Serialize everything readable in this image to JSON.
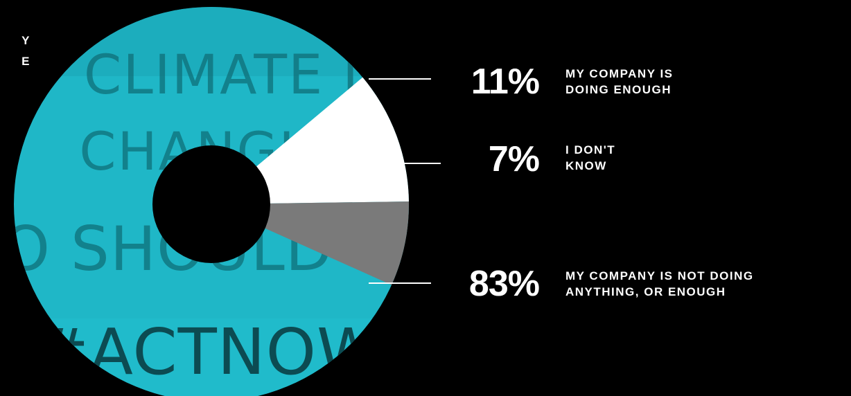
{
  "side_text": {
    "line1": "Y",
    "line2": "E"
  },
  "photo": {
    "sign_lines": [
      "CLIMATE I",
      "CHANGIN",
      "SO SHOULD WE",
      "#ACTNOW"
    ]
  },
  "colors": {
    "teal": "#1fb7c7",
    "white_slice": "#ffffff",
    "gray_slice": "#7a7a7a",
    "background": "#000000"
  },
  "chart_data": {
    "type": "pie",
    "style": "donut",
    "slices": [
      {
        "value": 11,
        "label_pct": "11%",
        "label_lines": [
          "MY COMPANY IS",
          "DOING ENOUGH"
        ]
      },
      {
        "value": 7,
        "label_pct": "7%",
        "label_lines": [
          "I DON'T",
          "KNOW"
        ]
      },
      {
        "value": 83,
        "label_pct": "83%",
        "label_lines": [
          "MY COMPANY IS NOT DOING",
          "ANYTHING, OR ENOUGH"
        ]
      }
    ]
  }
}
